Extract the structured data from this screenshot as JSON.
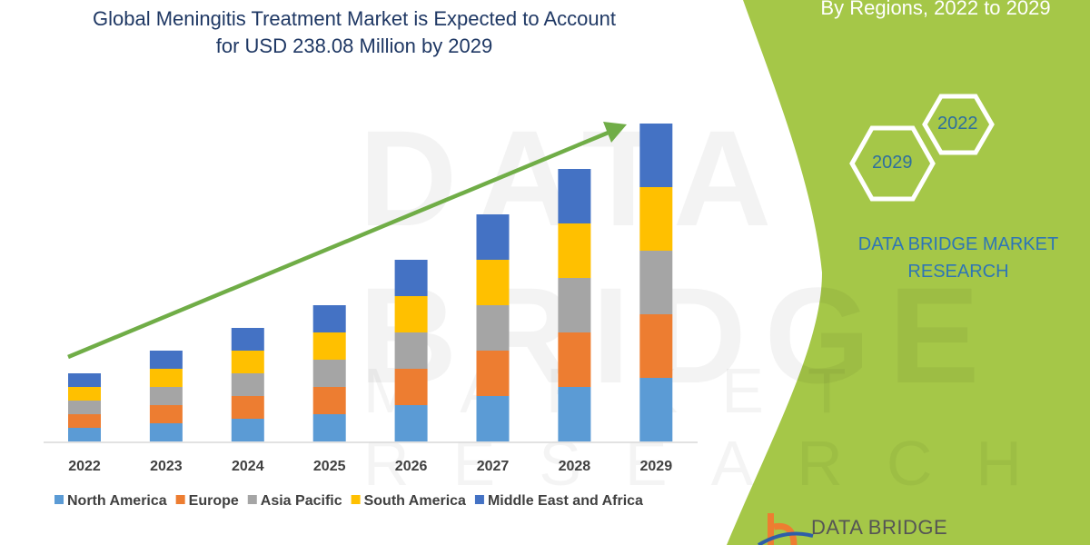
{
  "title_line1": "Global Meningitis Treatment Market is Expected to Account",
  "title_line2": "for USD 238.08 Million by 2029",
  "subtitle": "By Regions, 2022 to 2029",
  "hexagons": [
    "2029",
    "2022"
  ],
  "brand_line1": "DATA BRIDGE MARKET",
  "brand_line2": "RESEARCH",
  "logo_text": "DATA BRIDGE",
  "watermark": "DATA BRIDGE",
  "watermark2": "MARKET RESEARCH",
  "colors": {
    "accent_green": "#a5c748",
    "title": "#1f3864",
    "arrow": "#70ad47"
  },
  "chart_data": {
    "type": "bar",
    "stacked": true,
    "title": "",
    "xlabel": "",
    "ylabel": "",
    "y_axis_shown": false,
    "grid": false,
    "legend_placement": "bottom",
    "trend_arrow": true,
    "categories": [
      "2022",
      "2023",
      "2024",
      "2025",
      "2026",
      "2027",
      "2028",
      "2029"
    ],
    "series": [
      {
        "name": "North America",
        "color": "#5b9bd5",
        "values": [
          15,
          20,
          25,
          30,
          40,
          50,
          60,
          70
        ]
      },
      {
        "name": "Europe",
        "color": "#ed7d31",
        "values": [
          15,
          20,
          25,
          30,
          40,
          50,
          60,
          70
        ]
      },
      {
        "name": "Asia Pacific",
        "color": "#a5a5a5",
        "values": [
          15,
          20,
          25,
          30,
          40,
          50,
          60,
          70
        ]
      },
      {
        "name": "South America",
        "color": "#ffc000",
        "values": [
          15,
          20,
          25,
          30,
          40,
          50,
          60,
          70
        ]
      },
      {
        "name": "Middle East and Africa",
        "color": "#4472c4",
        "values": [
          15,
          20,
          25,
          30,
          40,
          50,
          60,
          70
        ]
      }
    ]
  }
}
